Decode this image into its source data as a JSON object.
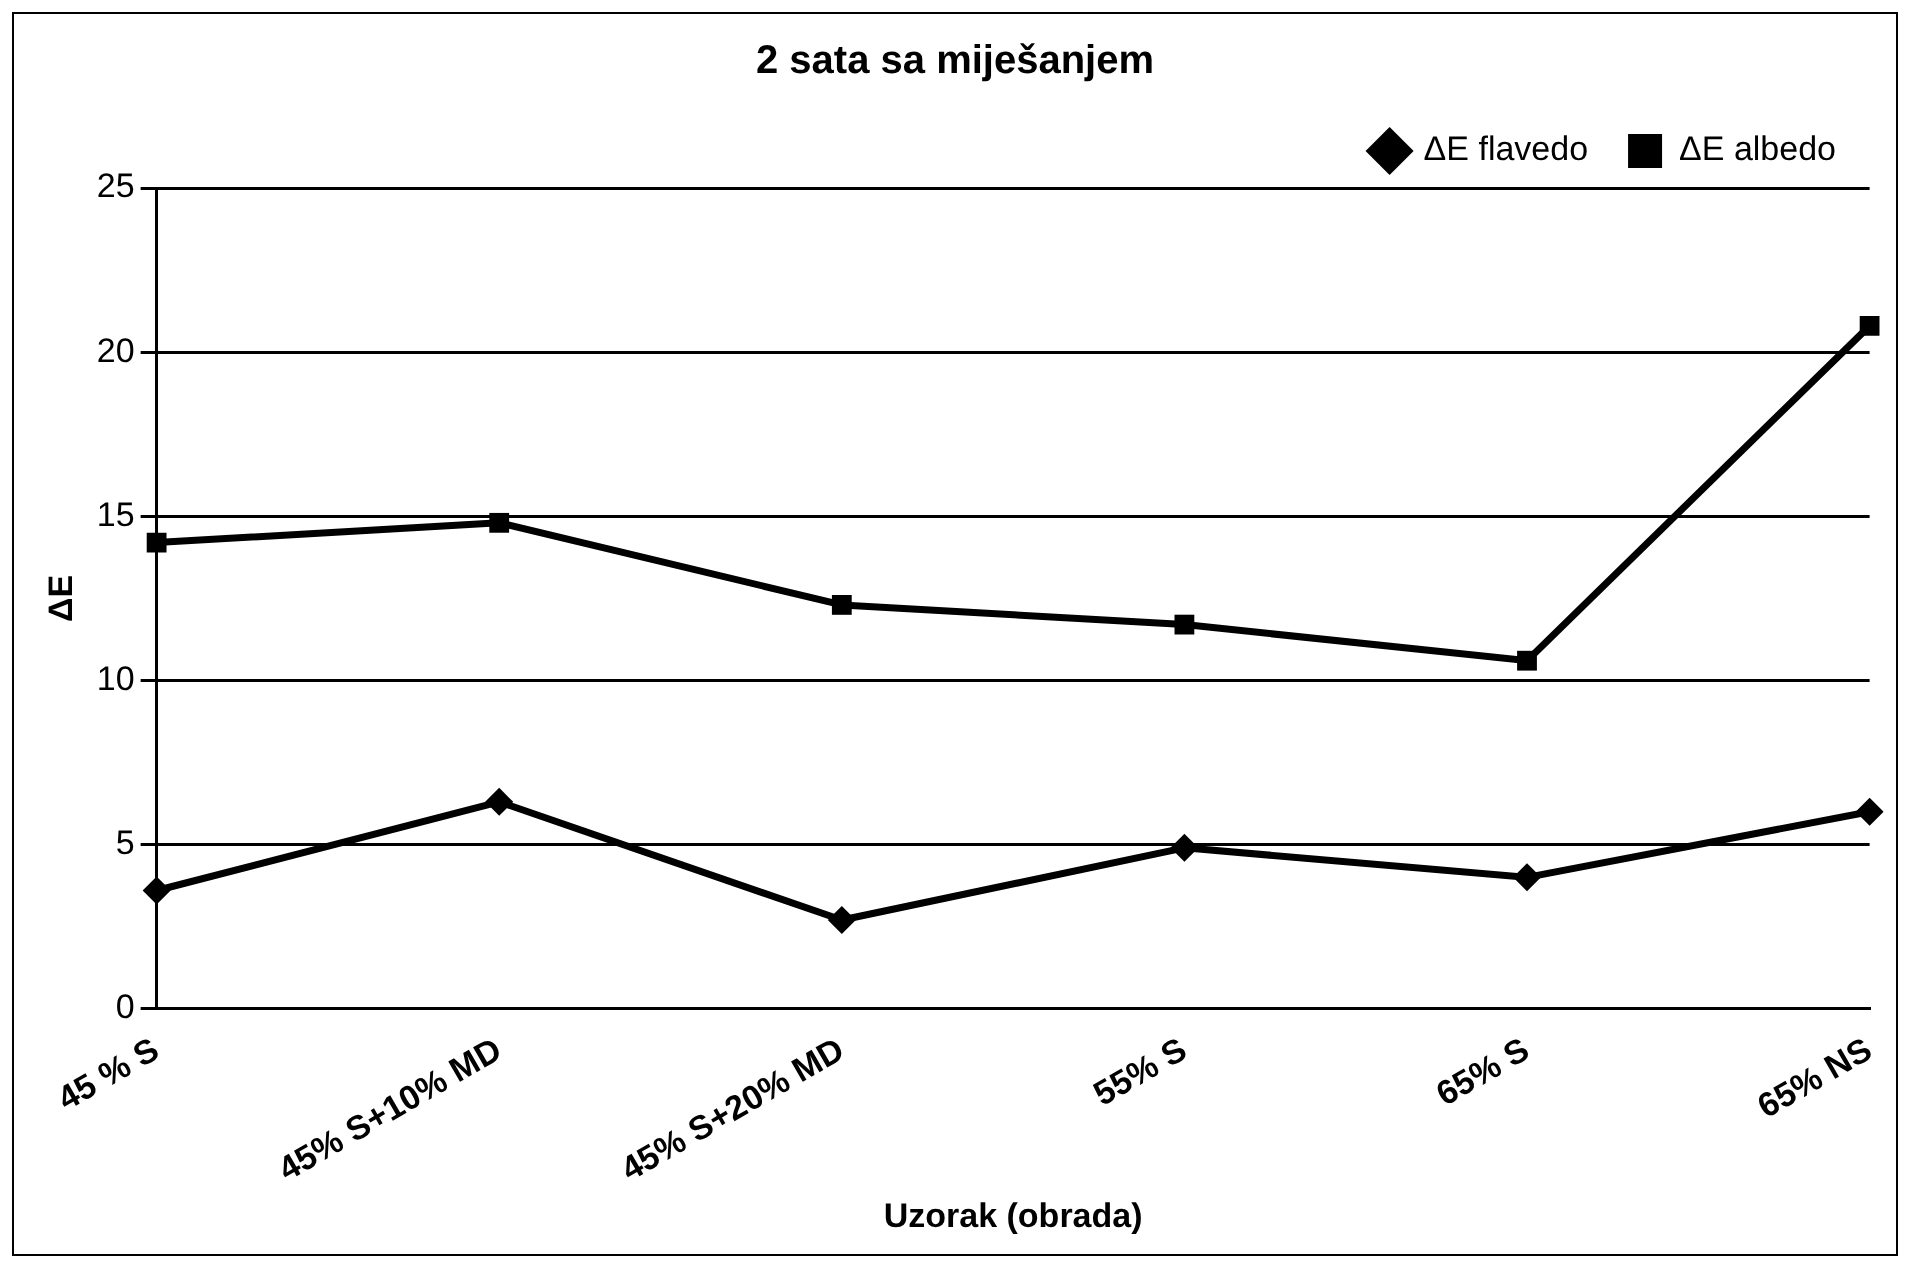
{
  "chart_data": {
    "type": "line",
    "title": "2 sata sa miješanjem",
    "xlabel": "Uzorak (obrada)",
    "ylabel": "ΔE",
    "categories": [
      "45 % S",
      "45% S+10% MD",
      "45% S+20% MD",
      "55% S",
      "65% S",
      "65% NS"
    ],
    "series": [
      {
        "name": "ΔE flavedo",
        "color": "#000000",
        "marker": "diamond",
        "values": [
          3.6,
          6.3,
          2.7,
          4.9,
          4.0,
          6.0
        ]
      },
      {
        "name": "ΔE albedo",
        "color": "#000000",
        "marker": "square",
        "values": [
          14.2,
          14.8,
          12.3,
          11.7,
          10.6,
          20.8
        ]
      }
    ],
    "ylim": [
      0,
      25
    ],
    "yticks": [
      0,
      5,
      10,
      15,
      20,
      25
    ],
    "grid": "y",
    "legend": "top right",
    "line_style": "solid"
  }
}
